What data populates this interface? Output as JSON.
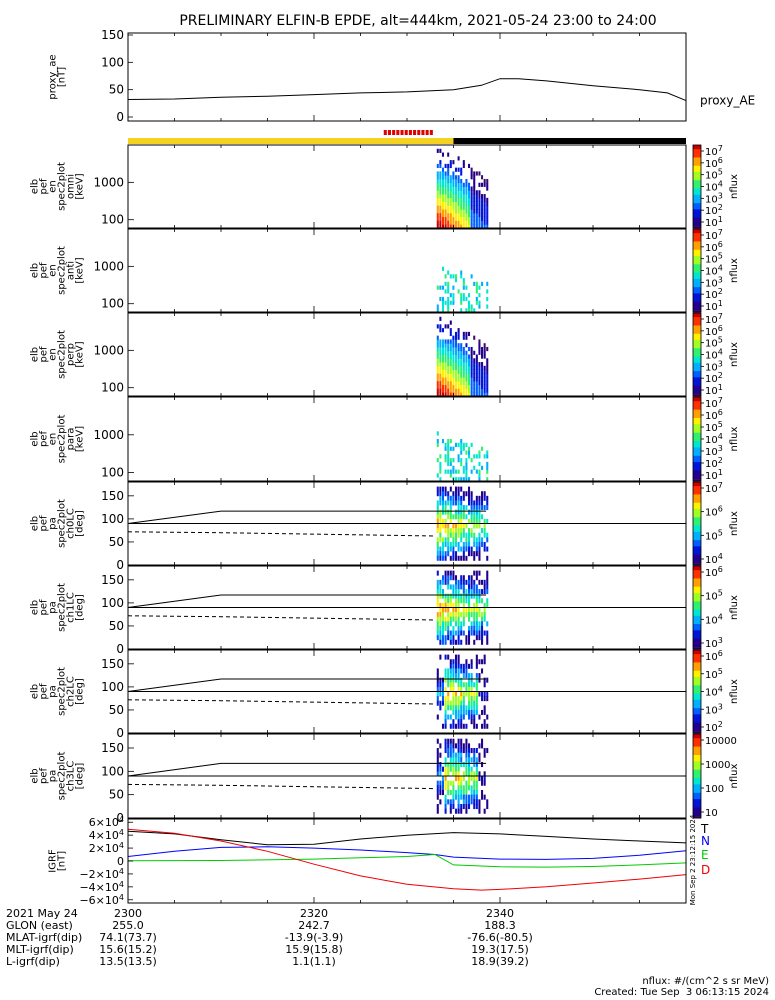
{
  "title": "PRELIMINARY ELFIN-B EPDE, alt=444km, 2021-05-24 23:00 to 24:00",
  "side_label": "Mon Sep  2 23:12:15 2024",
  "chart_data": [
    {
      "id": "proxy_ae",
      "type": "line",
      "ylabel": [
        "proxy_ae",
        "[nT]"
      ],
      "ylim": [
        0,
        150
      ],
      "yticks": [
        "0",
        "50",
        "100",
        "150"
      ],
      "series": [
        {
          "name": "proxy_AE",
          "x": [
            0,
            5,
            10,
            15,
            20,
            25,
            30,
            35,
            38,
            40,
            42,
            45,
            50,
            55,
            58,
            60
          ],
          "y": [
            32,
            33,
            36,
            38,
            41,
            44,
            46,
            50,
            58,
            70,
            70,
            66,
            57,
            50,
            44,
            30
          ]
        }
      ]
    },
    {
      "id": "status_bar",
      "type": "bar",
      "segments": [
        {
          "x0": 0,
          "x1": 35,
          "color": "#f5d21f"
        },
        {
          "x0": 35,
          "x1": 60,
          "color": "#000000"
        }
      ],
      "marks": [
        {
          "x0": 27.5,
          "x1": 32.5,
          "color": "#e00000"
        }
      ]
    },
    {
      "id": "pef_omni",
      "type": "heatmap",
      "ylabel": [
        "elb",
        "pef",
        "en",
        "spec2plot",
        "omni",
        "[keV]"
      ],
      "ytype": "log",
      "yticks": [
        "100",
        "1000"
      ],
      "zlabel": "nflux",
      "ztick_labels": [
        "10<sup>7</sup>",
        "10<sup>6</sup>",
        "10<sup>5</sup>",
        "10<sup>4</sup>",
        "10<sup>3</sup>",
        "10<sup>2</sup>",
        "10<sup>1</sup>"
      ]
    },
    {
      "id": "pef_anti",
      "type": "heatmap",
      "ylabel": [
        "elb",
        "pef",
        "en",
        "spec2plot",
        "anti",
        "[keV]"
      ],
      "ytype": "log",
      "yticks": [
        "100",
        "1000"
      ],
      "zlabel": "nflux",
      "ztick_labels": [
        "10<sup>7</sup>",
        "10<sup>6</sup>",
        "10<sup>5</sup>",
        "10<sup>4</sup>",
        "10<sup>3</sup>",
        "10<sup>2</sup>",
        "10<sup>1</sup>"
      ]
    },
    {
      "id": "pef_perp",
      "type": "heatmap",
      "ylabel": [
        "elb",
        "pef",
        "en",
        "spec2plot",
        "perp",
        "[keV]"
      ],
      "ytype": "log",
      "yticks": [
        "100",
        "1000"
      ],
      "zlabel": "nflux",
      "ztick_labels": [
        "10<sup>7</sup>",
        "10<sup>6</sup>",
        "10<sup>5</sup>",
        "10<sup>4</sup>",
        "10<sup>3</sup>",
        "10<sup>2</sup>",
        "10<sup>1</sup>"
      ]
    },
    {
      "id": "pef_para",
      "type": "heatmap",
      "ylabel": [
        "elb",
        "pef",
        "en",
        "spec2plot",
        "para",
        "[keV]"
      ],
      "ytype": "log",
      "yticks": [
        "100",
        "1000"
      ],
      "zlabel": "nflux",
      "ztick_labels": [
        "10<sup>7</sup>",
        "10<sup>6</sup>",
        "10<sup>5</sup>",
        "10<sup>4</sup>",
        "10<sup>3</sup>",
        "10<sup>2</sup>",
        "10<sup>1</sup>"
      ]
    },
    {
      "id": "pa_ch0",
      "type": "heatmap",
      "ylabel": [
        "elb",
        "pef",
        "pa",
        "spec2plot",
        "ch0LC",
        "[deg]"
      ],
      "ylim": [
        0,
        180
      ],
      "yticks": [
        "0",
        "50",
        "100",
        "150"
      ],
      "zlabel": "nflux",
      "ztick_labels": [
        "10<sup>7</sup>",
        "10<sup>6</sup>",
        "10<sup>5</sup>",
        "10<sup>4</sup>"
      ]
    },
    {
      "id": "pa_ch1",
      "type": "heatmap",
      "ylabel": [
        "elb",
        "pef",
        "pa",
        "spec2plot",
        "ch1LC",
        "[deg]"
      ],
      "ylim": [
        0,
        180
      ],
      "yticks": [
        "0",
        "50",
        "100",
        "150"
      ],
      "zlabel": "nflux",
      "ztick_labels": [
        "10<sup>6</sup>",
        "10<sup>5</sup>",
        "10<sup>4</sup>",
        "10<sup>3</sup>"
      ]
    },
    {
      "id": "pa_ch2",
      "type": "heatmap",
      "ylabel": [
        "elb",
        "pef",
        "pa",
        "spec2plot",
        "ch2LC",
        "[deg]"
      ],
      "ylim": [
        0,
        180
      ],
      "yticks": [
        "0",
        "50",
        "100",
        "150"
      ],
      "zlabel": "nflux",
      "ztick_labels": [
        "10<sup>6</sup>",
        "10<sup>5</sup>",
        "10<sup>4</sup>",
        "10<sup>3</sup>",
        "10<sup>2</sup>"
      ]
    },
    {
      "id": "pa_ch3",
      "type": "heatmap",
      "ylabel": [
        "elb",
        "pef",
        "pa",
        "spec2plot",
        "ch3LC",
        "[deg]"
      ],
      "ylim": [
        0,
        180
      ],
      "yticks": [
        "0",
        "50",
        "100",
        "150"
      ],
      "zlabel": "nflux",
      "ztick_labels": [
        "10000",
        "1000",
        "100",
        "10"
      ]
    },
    {
      "id": "igrf",
      "type": "line",
      "ylabel": [
        "IGRF",
        "[nT]"
      ],
      "ylim": [
        -65000,
        65000
      ],
      "yticks": [
        "6×10<sup>4</sup>",
        "4×10<sup>4</sup>",
        "2×10<sup>4</sup>",
        "0",
        "−2×10<sup>4</sup>",
        "−4×10<sup>4</sup>",
        "−6×10<sup>4</sup>"
      ],
      "series": [
        {
          "name": "T",
          "color": "#000000",
          "x": [
            0,
            5,
            10,
            15,
            20,
            25,
            30,
            35,
            40,
            45,
            50,
            55,
            60
          ],
          "y": [
            46000,
            42000,
            33000,
            25000,
            26000,
            34000,
            40000,
            44000,
            42000,
            38000,
            34000,
            31000,
            28000
          ]
        },
        {
          "name": "N",
          "color": "#0000ff",
          "x": [
            0,
            5,
            10,
            15,
            20,
            25,
            30,
            33,
            35,
            40,
            45,
            50,
            55,
            60
          ],
          "y": [
            7000,
            15000,
            21000,
            22000,
            20000,
            17000,
            13000,
            10000,
            6000,
            3000,
            2500,
            4000,
            9000,
            16000
          ]
        },
        {
          "name": "E",
          "color": "#00cc00",
          "x": [
            0,
            10,
            20,
            25,
            30,
            33,
            35,
            40,
            45,
            50,
            55,
            60
          ],
          "y": [
            500,
            700,
            3000,
            5000,
            7000,
            10000,
            -6000,
            -9000,
            -9500,
            -8500,
            -6000,
            -3000
          ]
        },
        {
          "name": "D",
          "color": "#ee0000",
          "x": [
            0,
            5,
            10,
            15,
            20,
            25,
            30,
            35,
            38,
            40,
            45,
            50,
            55,
            60
          ],
          "y": [
            49000,
            43000,
            31000,
            15000,
            -5000,
            -23000,
            -36000,
            -43000,
            -45000,
            -44000,
            -40000,
            -34000,
            -28000,
            -21000
          ]
        }
      ]
    }
  ],
  "footer": {
    "rows": [
      {
        "label": "2021 May 24",
        "values": [
          "2300",
          "2320",
          "2340"
        ]
      },
      {
        "label": "GLON (east)",
        "values": [
          "255.0",
          "242.7",
          "188.3"
        ]
      },
      {
        "label": "MLAT-igrf(dip)",
        "values": [
          "74.1(73.7)",
          "-13.9(-3.9)",
          "-76.6(-80.5)"
        ]
      },
      {
        "label": "MLT-igrf(dip)",
        "values": [
          "15.6(15.2)",
          "15.9(15.8)",
          "19.3(17.5)"
        ]
      },
      {
        "label": "L-igrf(dip)",
        "values": [
          "13.5(13.5)",
          "1.1(1.1)",
          "18.9(39.2)"
        ]
      }
    ],
    "units_note": "nflux: #/(cm^2 s sr MeV)",
    "created": "Created: Tue Sep  3 06:13:15 2024"
  }
}
